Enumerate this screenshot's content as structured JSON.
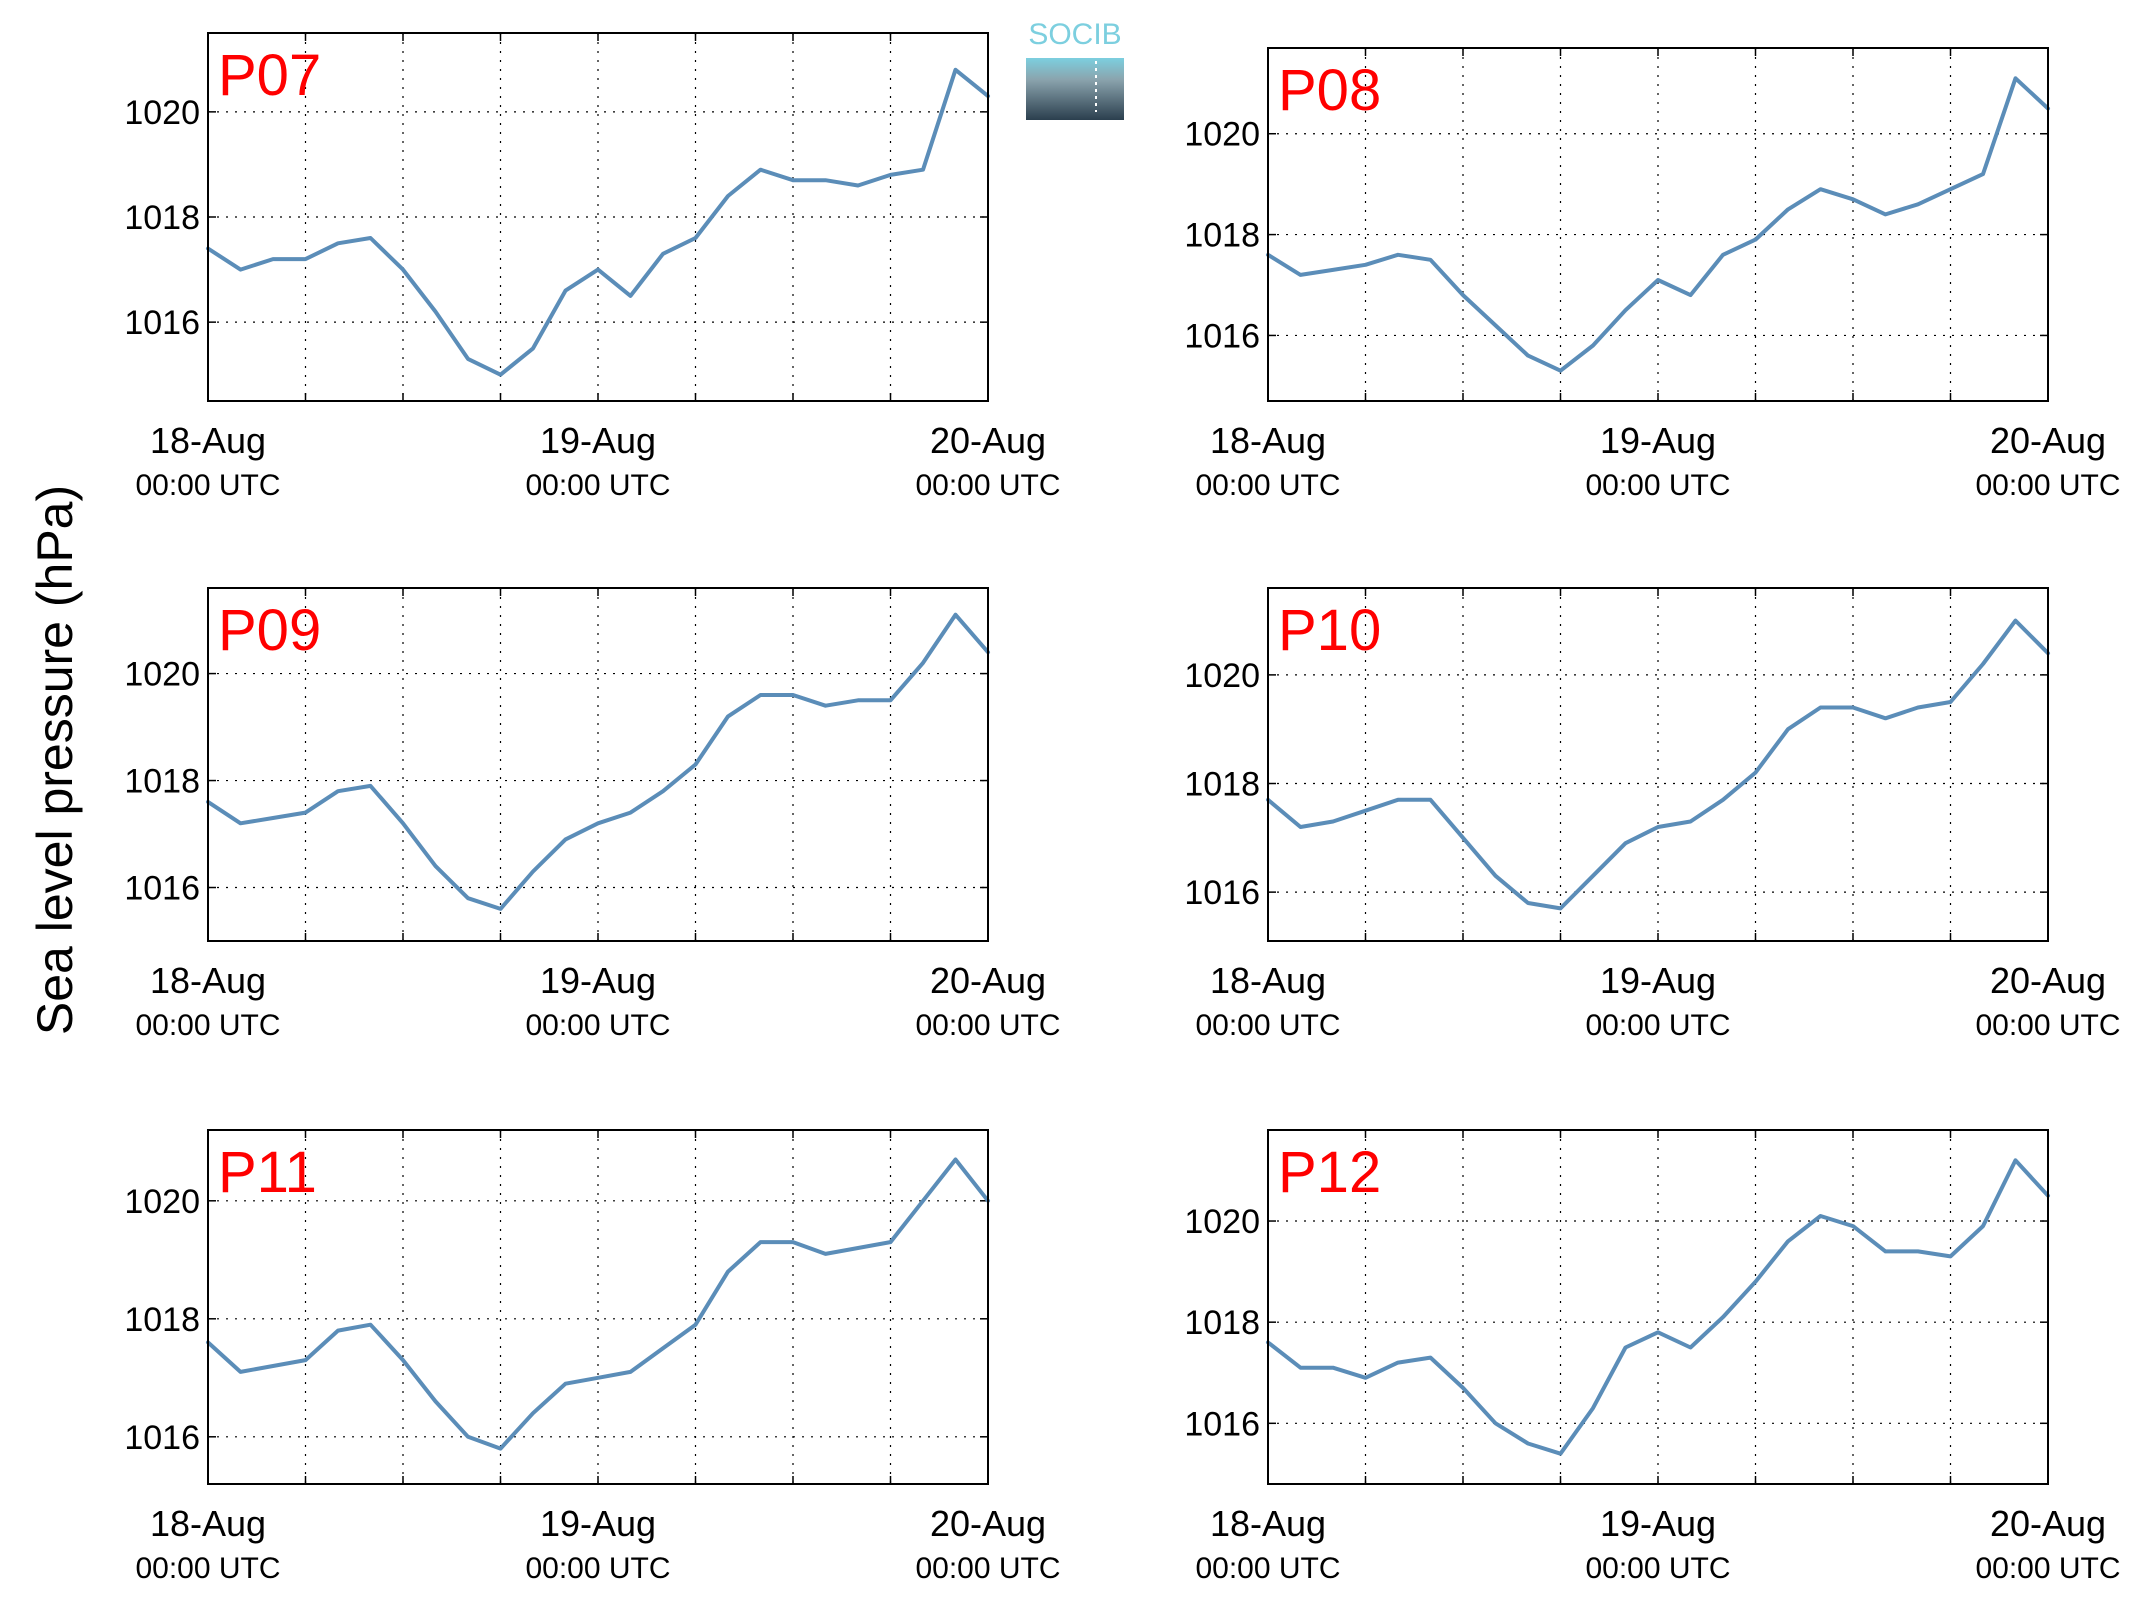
{
  "figure": {
    "ylabel": "Sea level pressure (hPa)",
    "logo_text": "SOCIB"
  },
  "colors": {
    "line": "#5b8db8",
    "panel_label": "#ff0000",
    "axis": "#000000",
    "grid": "#000000",
    "logo_top": "#7ccfdf",
    "logo_bottom": "#2b3f4e"
  },
  "chart_data": [
    {
      "type": "line",
      "panel_label": "P07",
      "x_ticks": [
        {
          "date": "18-Aug",
          "time": "00:00 UTC"
        },
        {
          "date": "19-Aug",
          "time": "00:00 UTC"
        },
        {
          "date": "20-Aug",
          "time": "00:00 UTC"
        }
      ],
      "y_ticks": [
        "1016",
        "1018",
        "1020"
      ],
      "ylim": [
        1014.5,
        1021.5
      ],
      "grid": true,
      "series": [
        {
          "x": [
            "2018-08-18 00:00",
            "2018-08-18 02:00",
            "2018-08-18 04:00",
            "2018-08-18 06:00",
            "2018-08-18 08:00",
            "2018-08-18 10:00",
            "2018-08-18 12:00",
            "2018-08-18 14:00",
            "2018-08-18 16:00",
            "2018-08-18 18:00",
            "2018-08-18 20:00",
            "2018-08-18 22:00",
            "2018-08-19 00:00",
            "2018-08-19 02:00",
            "2018-08-19 04:00",
            "2018-08-19 06:00",
            "2018-08-19 08:00",
            "2018-08-19 10:00",
            "2018-08-19 12:00",
            "2018-08-19 14:00",
            "2018-08-19 16:00",
            "2018-08-19 18:00",
            "2018-08-19 20:00",
            "2018-08-19 22:00",
            "2018-08-20 00:00"
          ],
          "y": [
            1017.4,
            1017.0,
            1017.2,
            1017.2,
            1017.5,
            1017.6,
            1017.0,
            1016.2,
            1015.3,
            1015.0,
            1015.5,
            1016.6,
            1017.0,
            1016.5,
            1017.3,
            1017.6,
            1018.4,
            1018.9,
            1018.7,
            1018.7,
            1018.6,
            1018.8,
            1018.9,
            1020.8,
            1020.3
          ]
        }
      ]
    },
    {
      "type": "line",
      "panel_label": "P08",
      "x_ticks": [
        {
          "date": "18-Aug",
          "time": "00:00 UTC"
        },
        {
          "date": "19-Aug",
          "time": "00:00 UTC"
        },
        {
          "date": "20-Aug",
          "time": "00:00 UTC"
        }
      ],
      "y_ticks": [
        "1016",
        "1018",
        "1020"
      ],
      "ylim": [
        1014.7,
        1021.7
      ],
      "grid": true,
      "series": [
        {
          "x": [
            "2018-08-18 00:00",
            "2018-08-18 02:00",
            "2018-08-18 04:00",
            "2018-08-18 06:00",
            "2018-08-18 08:00",
            "2018-08-18 10:00",
            "2018-08-18 12:00",
            "2018-08-18 14:00",
            "2018-08-18 16:00",
            "2018-08-18 18:00",
            "2018-08-18 20:00",
            "2018-08-18 22:00",
            "2018-08-19 00:00",
            "2018-08-19 02:00",
            "2018-08-19 04:00",
            "2018-08-19 06:00",
            "2018-08-19 08:00",
            "2018-08-19 10:00",
            "2018-08-19 12:00",
            "2018-08-19 14:00",
            "2018-08-19 16:00",
            "2018-08-19 18:00",
            "2018-08-19 20:00",
            "2018-08-19 22:00",
            "2018-08-20 00:00"
          ],
          "y": [
            1017.6,
            1017.2,
            1017.3,
            1017.4,
            1017.6,
            1017.5,
            1016.8,
            1016.2,
            1015.6,
            1015.3,
            1015.8,
            1016.5,
            1017.1,
            1016.8,
            1017.6,
            1017.9,
            1018.5,
            1018.9,
            1018.7,
            1018.4,
            1018.6,
            1018.9,
            1019.2,
            1021.1,
            1020.5
          ]
        }
      ]
    },
    {
      "type": "line",
      "panel_label": "P09",
      "x_ticks": [
        {
          "date": "18-Aug",
          "time": "00:00 UTC"
        },
        {
          "date": "19-Aug",
          "time": "00:00 UTC"
        },
        {
          "date": "20-Aug",
          "time": "00:00 UTC"
        }
      ],
      "y_ticks": [
        "1016",
        "1018",
        "1020"
      ],
      "ylim": [
        1015.0,
        1021.6
      ],
      "grid": true,
      "series": [
        {
          "x": [
            "2018-08-18 00:00",
            "2018-08-18 02:00",
            "2018-08-18 04:00",
            "2018-08-18 06:00",
            "2018-08-18 08:00",
            "2018-08-18 10:00",
            "2018-08-18 12:00",
            "2018-08-18 14:00",
            "2018-08-18 16:00",
            "2018-08-18 18:00",
            "2018-08-18 20:00",
            "2018-08-18 22:00",
            "2018-08-19 00:00",
            "2018-08-19 02:00",
            "2018-08-19 04:00",
            "2018-08-19 06:00",
            "2018-08-19 08:00",
            "2018-08-19 10:00",
            "2018-08-19 12:00",
            "2018-08-19 14:00",
            "2018-08-19 16:00",
            "2018-08-19 18:00",
            "2018-08-19 20:00",
            "2018-08-19 22:00",
            "2018-08-20 00:00"
          ],
          "y": [
            1017.6,
            1017.2,
            1017.3,
            1017.4,
            1017.8,
            1017.9,
            1017.2,
            1016.4,
            1015.8,
            1015.6,
            1016.3,
            1016.9,
            1017.2,
            1017.4,
            1017.8,
            1018.3,
            1019.2,
            1019.6,
            1019.6,
            1019.4,
            1019.5,
            1019.5,
            1020.2,
            1021.1,
            1020.4
          ]
        }
      ]
    },
    {
      "type": "line",
      "panel_label": "P10",
      "x_ticks": [
        {
          "date": "18-Aug",
          "time": "00:00 UTC"
        },
        {
          "date": "19-Aug",
          "time": "00:00 UTC"
        },
        {
          "date": "20-Aug",
          "time": "00:00 UTC"
        }
      ],
      "y_ticks": [
        "1016",
        "1018",
        "1020"
      ],
      "ylim": [
        1015.1,
        1021.6
      ],
      "grid": true,
      "series": [
        {
          "x": [
            "2018-08-18 00:00",
            "2018-08-18 02:00",
            "2018-08-18 04:00",
            "2018-08-18 06:00",
            "2018-08-18 08:00",
            "2018-08-18 10:00",
            "2018-08-18 12:00",
            "2018-08-18 14:00",
            "2018-08-18 16:00",
            "2018-08-18 18:00",
            "2018-08-18 20:00",
            "2018-08-18 22:00",
            "2018-08-19 00:00",
            "2018-08-19 02:00",
            "2018-08-19 04:00",
            "2018-08-19 06:00",
            "2018-08-19 08:00",
            "2018-08-19 10:00",
            "2018-08-19 12:00",
            "2018-08-19 14:00",
            "2018-08-19 16:00",
            "2018-08-19 18:00",
            "2018-08-19 20:00",
            "2018-08-19 22:00",
            "2018-08-20 00:00"
          ],
          "y": [
            1017.7,
            1017.2,
            1017.3,
            1017.5,
            1017.7,
            1017.7,
            1017.0,
            1016.3,
            1015.8,
            1015.7,
            1016.3,
            1016.9,
            1017.2,
            1017.3,
            1017.7,
            1018.2,
            1019.0,
            1019.4,
            1019.4,
            1019.2,
            1019.4,
            1019.5,
            1020.2,
            1021.0,
            1020.4
          ]
        }
      ]
    },
    {
      "type": "line",
      "panel_label": "P11",
      "x_ticks": [
        {
          "date": "18-Aug",
          "time": "00:00 UTC"
        },
        {
          "date": "19-Aug",
          "time": "00:00 UTC"
        },
        {
          "date": "20-Aug",
          "time": "00:00 UTC"
        }
      ],
      "y_ticks": [
        "1016",
        "1018",
        "1020"
      ],
      "ylim": [
        1015.2,
        1021.2
      ],
      "grid": true,
      "series": [
        {
          "x": [
            "2018-08-18 00:00",
            "2018-08-18 02:00",
            "2018-08-18 04:00",
            "2018-08-18 06:00",
            "2018-08-18 08:00",
            "2018-08-18 10:00",
            "2018-08-18 12:00",
            "2018-08-18 14:00",
            "2018-08-18 16:00",
            "2018-08-18 18:00",
            "2018-08-18 20:00",
            "2018-08-18 22:00",
            "2018-08-19 00:00",
            "2018-08-19 02:00",
            "2018-08-19 04:00",
            "2018-08-19 06:00",
            "2018-08-19 08:00",
            "2018-08-19 10:00",
            "2018-08-19 12:00",
            "2018-08-19 14:00",
            "2018-08-19 16:00",
            "2018-08-19 18:00",
            "2018-08-19 20:00",
            "2018-08-19 22:00",
            "2018-08-20 00:00"
          ],
          "y": [
            1017.6,
            1017.1,
            1017.2,
            1017.3,
            1017.8,
            1017.9,
            1017.3,
            1016.6,
            1016.0,
            1015.8,
            1016.4,
            1016.9,
            1017.0,
            1017.1,
            1017.5,
            1017.9,
            1018.8,
            1019.3,
            1019.3,
            1019.1,
            1019.2,
            1019.3,
            1020.0,
            1020.7,
            1020.0
          ]
        }
      ]
    },
    {
      "type": "line",
      "panel_label": "P12",
      "x_ticks": [
        {
          "date": "18-Aug",
          "time": "00:00 UTC"
        },
        {
          "date": "19-Aug",
          "time": "00:00 UTC"
        },
        {
          "date": "20-Aug",
          "time": "00:00 UTC"
        }
      ],
      "y_ticks": [
        "1016",
        "1018",
        "1020"
      ],
      "ylim": [
        1014.8,
        1021.8
      ],
      "grid": true,
      "series": [
        {
          "x": [
            "2018-08-18 00:00",
            "2018-08-18 02:00",
            "2018-08-18 04:00",
            "2018-08-18 06:00",
            "2018-08-18 08:00",
            "2018-08-18 10:00",
            "2018-08-18 12:00",
            "2018-08-18 14:00",
            "2018-08-18 16:00",
            "2018-08-18 18:00",
            "2018-08-18 20:00",
            "2018-08-18 22:00",
            "2018-08-19 00:00",
            "2018-08-19 02:00",
            "2018-08-19 04:00",
            "2018-08-19 06:00",
            "2018-08-19 08:00",
            "2018-08-19 10:00",
            "2018-08-19 12:00",
            "2018-08-19 14:00",
            "2018-08-19 16:00",
            "2018-08-19 18:00",
            "2018-08-19 20:00",
            "2018-08-19 22:00",
            "2018-08-20 00:00"
          ],
          "y": [
            1017.6,
            1017.1,
            1017.1,
            1016.9,
            1017.2,
            1017.3,
            1016.7,
            1016.0,
            1015.6,
            1015.4,
            1016.3,
            1017.5,
            1017.8,
            1017.5,
            1018.1,
            1018.8,
            1019.6,
            1020.1,
            1019.9,
            1019.4,
            1019.4,
            1019.3,
            1019.9,
            1021.2,
            1020.5
          ]
        }
      ]
    }
  ]
}
